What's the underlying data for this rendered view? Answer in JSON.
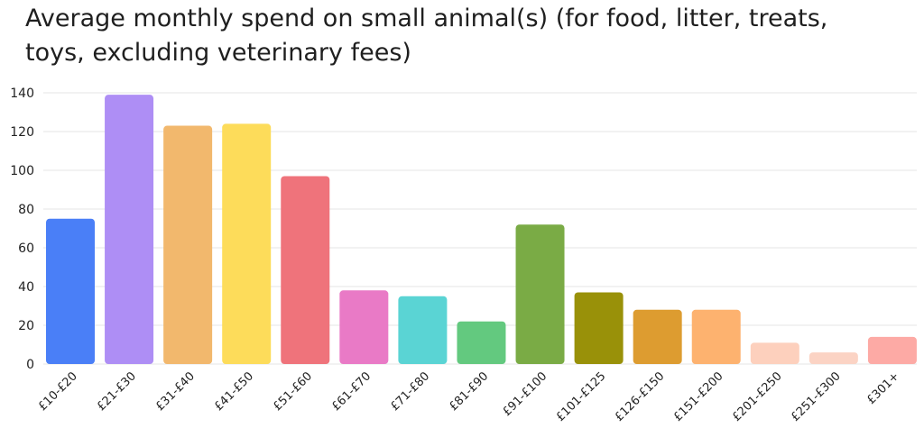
{
  "chart_data": {
    "type": "bar",
    "title": "Average monthly spend on small animal(s) (for food, litter, treats, toys, excluding veterinary fees)",
    "xlabel": "",
    "ylabel": "",
    "ylim": [
      0,
      140
    ],
    "yticks": [
      0,
      20,
      40,
      60,
      80,
      100,
      120,
      140
    ],
    "grid": true,
    "categories": [
      "£10-£20",
      "£21-£30",
      "£31-£40",
      "£41-£50",
      "£51-£60",
      "£61-£70",
      "£71-£80",
      "£81-£90",
      "£91-£100",
      "£101-£125",
      "£126-£150",
      "£151-£200",
      "£201-£250",
      "£251-£300",
      "£301+"
    ],
    "values": [
      75,
      139,
      123,
      124,
      97,
      38,
      35,
      22,
      72,
      37,
      28,
      28,
      11,
      6,
      14
    ],
    "colors": [
      "#4a7ff7",
      "#ae8ef5",
      "#f2b86d",
      "#fddc5a",
      "#ef737b",
      "#e97ac6",
      "#5ad4d4",
      "#63c97f",
      "#7aab45",
      "#999109",
      "#dd9c30",
      "#fdb26f",
      "#fdd0bd",
      "#fbd3c4",
      "#fdaaa5"
    ]
  }
}
